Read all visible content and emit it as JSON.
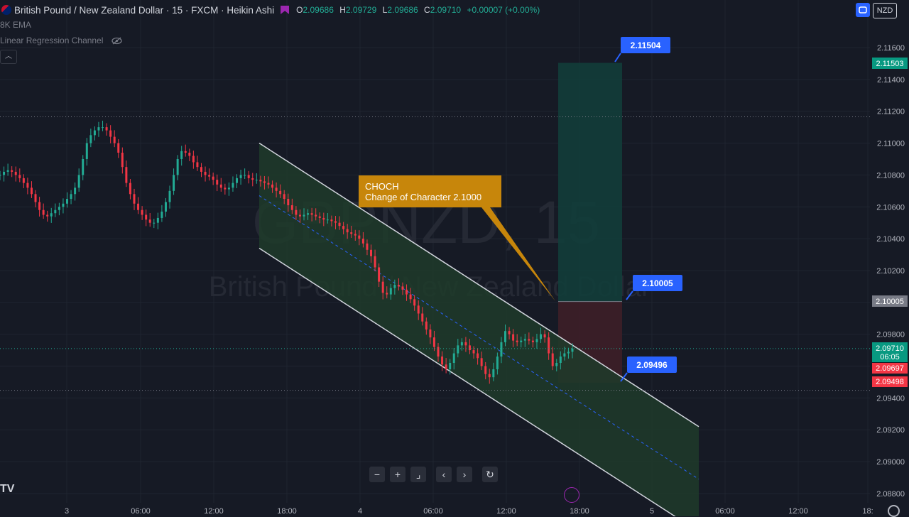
{
  "header": {
    "title": "British Pound / New Zealand Dollar · 15 · FXCM · Heikin Ashi",
    "ohlc": [
      {
        "label": "O",
        "value": "2.09686"
      },
      {
        "label": "H",
        "value": "2.09729"
      },
      {
        "label": "L",
        "value": "2.09686"
      },
      {
        "label": "C",
        "value": "2.09710"
      }
    ],
    "change": "+0.00007 (+0.00%)",
    "currency_button": "NZD"
  },
  "indicators": [
    {
      "label": "8K EMA"
    },
    {
      "label": "Linear Regression Channel"
    }
  ],
  "watermark": {
    "symbol": "GBPNZD, 15",
    "name": "British Pound / New Zealand Dollar"
  },
  "annotation": {
    "title": "CHOCH",
    "text": "Change of Character 2.1000"
  },
  "price_tags": {
    "target": "2.11504",
    "entry": "2.10005",
    "stop": "2.09496"
  },
  "axis_badges": {
    "target": "2.11503",
    "entry": "2.10005",
    "last_price": "2.09710",
    "countdown": "06:05",
    "prev_close": "2.09697",
    "stop": "2.09498"
  },
  "colors": {
    "background": "#161a25",
    "up": "#22ab94",
    "down": "#f23645",
    "channel_fill": "#1f3b2a",
    "target_zone": "#123d3a",
    "stop_zone": "#3d1f28",
    "annotation": "#c7860b",
    "tag": "#2962ff"
  },
  "navigation_icons": [
    "zoom-out-icon",
    "zoom-in-icon",
    "reset-zoom-icon",
    "scroll-left-icon",
    "scroll-right-icon",
    "reset-chart-icon"
  ],
  "chart_data": {
    "type": "candlestick",
    "y_ticks": [
      "2.11600",
      "2.11400",
      "2.11200",
      "2.11000",
      "2.10800",
      "2.10600",
      "2.10400",
      "2.10200",
      "2.10000",
      "2.09800",
      "2.09600",
      "2.09400",
      "2.09200",
      "2.09000",
      "2.08800"
    ],
    "ylim": [
      2.0876,
      2.1173
    ],
    "x_ticks": [
      "3",
      "06:00",
      "12:00",
      "18:00",
      "4",
      "06:00",
      "12:00",
      "18:00",
      "5",
      "06:00",
      "12:00",
      "18:"
    ],
    "close_series": [
      2.108,
      2.1082,
      2.1083,
      2.1082,
      2.108,
      2.1078,
      2.1075,
      2.1072,
      2.1068,
      2.1063,
      2.1058,
      2.1055,
      2.1054,
      2.1056,
      2.1058,
      2.106,
      2.1062,
      2.1065,
      2.1068,
      2.1072,
      2.108,
      2.109,
      2.11,
      2.1105,
      2.1108,
      2.111,
      2.111,
      2.1108,
      2.1104,
      2.11,
      2.1094,
      2.1085,
      2.1075,
      2.1068,
      2.1062,
      2.1058,
      2.1055,
      2.1052,
      2.105,
      2.105,
      2.1053,
      2.1057,
      2.1063,
      2.107,
      2.108,
      2.109,
      2.1095,
      2.1094,
      2.1092,
      2.1088,
      2.1085,
      2.1082,
      2.108,
      2.1079,
      2.1077,
      2.1074,
      2.1072,
      2.1071,
      2.1072,
      2.1075,
      2.1078,
      2.108,
      2.108,
      2.1078,
      2.1077,
      2.1077,
      2.1076,
      2.1075,
      2.1074,
      2.1072,
      2.107,
      2.1068,
      2.1065,
      2.1061,
      2.1058,
      2.1055,
      2.1054,
      2.1055,
      2.1056,
      2.1055,
      2.1054,
      2.1053,
      2.1052,
      2.1052,
      2.1051,
      2.105,
      2.1048,
      2.1046,
      2.1044,
      2.1043,
      2.1042,
      2.104,
      2.1037,
      2.1033,
      2.1029,
      2.1022,
      2.1013,
      2.1006,
      2.1005,
      2.1009,
      2.1011,
      2.101,
      2.1008,
      2.1005,
      2.1002,
      2.0998,
      2.0993,
      2.0988,
      2.0983,
      2.0978,
      2.0972,
      2.0966,
      2.0961,
      2.0958,
      2.0962,
      2.0968,
      2.0973,
      2.0975,
      2.0973,
      2.097,
      2.0968,
      2.0965,
      2.096,
      2.0955,
      2.0953,
      2.0958,
      2.0966,
      2.0975,
      2.0982,
      2.098,
      2.0976,
      2.0975,
      2.0976,
      2.0977,
      2.0976,
      2.0975,
      2.0977,
      2.098,
      2.0978,
      2.0968,
      2.096,
      2.0962,
      2.0966,
      2.0968,
      2.0969,
      2.0971
    ],
    "regression_channel": {
      "upper": [
        {
          "x": "3 17:00",
          "y": 2.11
        },
        {
          "x": "5 04:00",
          "y": 2.0922
        }
      ],
      "middle": [
        {
          "x": "3 17:00",
          "y": 2.1067
        },
        {
          "x": "5 04:00",
          "y": 2.0889
        }
      ],
      "lower": [
        {
          "x": "3 17:00",
          "y": 2.1034
        },
        {
          "x": "5 04:00",
          "y": 2.0856
        }
      ]
    },
    "position": {
      "entry": 2.10005,
      "target": 2.11504,
      "stop": 2.09496
    },
    "last_price": 2.0971
  }
}
